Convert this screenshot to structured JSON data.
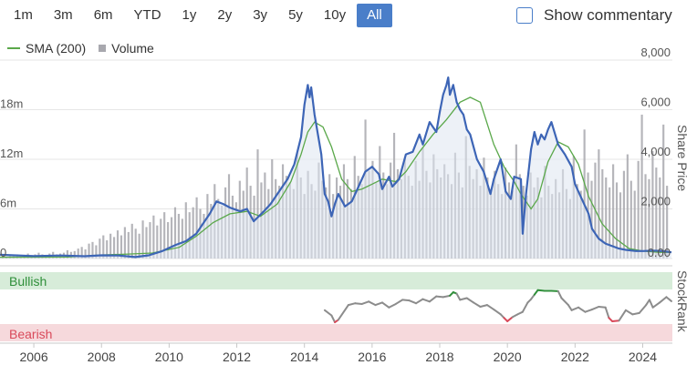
{
  "range_buttons": [
    {
      "label": "1m",
      "active": false
    },
    {
      "label": "3m",
      "active": false
    },
    {
      "label": "6m",
      "active": false
    },
    {
      "label": "YTD",
      "active": false
    },
    {
      "label": "1y",
      "active": false
    },
    {
      "label": "2y",
      "active": false
    },
    {
      "label": "3y",
      "active": false
    },
    {
      "label": "5y",
      "active": false
    },
    {
      "label": "10y",
      "active": false
    },
    {
      "label": "All",
      "active": true
    }
  ],
  "show_commentary": {
    "label": "Show commentary",
    "checked": false
  },
  "legend": {
    "sma_label": "SMA (200)",
    "volume_label": "Volume"
  },
  "colors": {
    "price": "#3d65b6",
    "sma": "#5aa84a",
    "volume": "#a8a8ae",
    "bullish": "#2f8f3a",
    "bearish": "#d9495a",
    "rank": "#8c8c8c",
    "accent": "#4a7ec9"
  },
  "chart_data": {
    "type": "line",
    "x_range": [
      2005,
      2024.85
    ],
    "x_ticks": [
      "2006",
      "2008",
      "2010",
      "2012",
      "2014",
      "2016",
      "2018",
      "2020",
      "2022",
      "2024"
    ],
    "price_axis": {
      "label": "Share Price",
      "range": [
        0,
        8000
      ],
      "ticks": [
        "8,000",
        "6,000",
        "4,000",
        "2,000",
        "0.00"
      ]
    },
    "volume_axis": {
      "ticks": [
        "18m",
        "12m",
        "6m",
        "0"
      ],
      "range": [
        0,
        24
      ]
    },
    "rank_axis": {
      "label": "StockRank",
      "bands": {
        "bullish": "Bullish",
        "bearish": "Bearish"
      },
      "range": [
        0,
        100
      ]
    },
    "series": [
      {
        "name": "SMA (200)",
        "points": [
          [
            2005,
            50
          ],
          [
            2007,
            60
          ],
          [
            2008,
            140
          ],
          [
            2008.8,
            180
          ],
          [
            2009.5,
            220
          ],
          [
            2010.3,
            450
          ],
          [
            2010.8,
            900
          ],
          [
            2011.3,
            1450
          ],
          [
            2011.8,
            1800
          ],
          [
            2012.3,
            1900
          ],
          [
            2012.7,
            1700
          ],
          [
            2013.2,
            2200
          ],
          [
            2013.6,
            3100
          ],
          [
            2013.9,
            4200
          ],
          [
            2014.1,
            5100
          ],
          [
            2014.3,
            5500
          ],
          [
            2014.55,
            5300
          ],
          [
            2014.8,
            4500
          ],
          [
            2015.1,
            3200
          ],
          [
            2015.4,
            2700
          ],
          [
            2015.7,
            2800
          ],
          [
            2016,
            3000
          ],
          [
            2016.3,
            3200
          ],
          [
            2016.7,
            3100
          ],
          [
            2017,
            3500
          ],
          [
            2017.4,
            4300
          ],
          [
            2017.8,
            5000
          ],
          [
            2018.2,
            5600
          ],
          [
            2018.6,
            6300
          ],
          [
            2018.9,
            6500
          ],
          [
            2019.2,
            6300
          ],
          [
            2019.6,
            4600
          ],
          [
            2019.9,
            3700
          ],
          [
            2020.2,
            3100
          ],
          [
            2020.4,
            2600
          ],
          [
            2020.7,
            2000
          ],
          [
            2020.9,
            2400
          ],
          [
            2021.2,
            3900
          ],
          [
            2021.5,
            4700
          ],
          [
            2021.8,
            4500
          ],
          [
            2022.1,
            3800
          ],
          [
            2022.4,
            2500
          ],
          [
            2022.8,
            1400
          ],
          [
            2023.2,
            800
          ],
          [
            2023.6,
            400
          ],
          [
            2024,
            300
          ],
          [
            2024.5,
            250
          ],
          [
            2024.85,
            250
          ]
        ]
      },
      {
        "name": "Share Price",
        "points": [
          [
            2005,
            150
          ],
          [
            2006,
            100
          ],
          [
            2006.8,
            120
          ],
          [
            2007.5,
            90
          ],
          [
            2008,
            130
          ],
          [
            2008.5,
            120
          ],
          [
            2009,
            60
          ],
          [
            2009.4,
            130
          ],
          [
            2009.8,
            300
          ],
          [
            2010.2,
            550
          ],
          [
            2010.5,
            700
          ],
          [
            2010.8,
            1000
          ],
          [
            2011.0,
            1400
          ],
          [
            2011.2,
            1800
          ],
          [
            2011.4,
            2300
          ],
          [
            2011.6,
            2200
          ],
          [
            2011.8,
            2050
          ],
          [
            2012.1,
            1900
          ],
          [
            2012.3,
            2000
          ],
          [
            2012.5,
            1500
          ],
          [
            2012.8,
            1900
          ],
          [
            2013.0,
            2200
          ],
          [
            2013.3,
            2800
          ],
          [
            2013.5,
            3200
          ],
          [
            2013.7,
            3800
          ],
          [
            2013.9,
            4900
          ],
          [
            2014.0,
            6200
          ],
          [
            2014.1,
            7000
          ],
          [
            2014.15,
            6500
          ],
          [
            2014.2,
            6900
          ],
          [
            2014.3,
            5800
          ],
          [
            2014.4,
            5000
          ],
          [
            2014.5,
            4200
          ],
          [
            2014.6,
            2600
          ],
          [
            2014.7,
            2300
          ],
          [
            2014.8,
            1700
          ],
          [
            2014.9,
            2200
          ],
          [
            2015.0,
            2600
          ],
          [
            2015.2,
            2100
          ],
          [
            2015.4,
            2300
          ],
          [
            2015.6,
            2900
          ],
          [
            2015.8,
            3500
          ],
          [
            2016.0,
            3700
          ],
          [
            2016.2,
            3400
          ],
          [
            2016.3,
            2800
          ],
          [
            2016.5,
            3300
          ],
          [
            2016.6,
            2900
          ],
          [
            2016.8,
            3200
          ],
          [
            2017.0,
            4200
          ],
          [
            2017.2,
            4300
          ],
          [
            2017.4,
            5000
          ],
          [
            2017.5,
            4600
          ],
          [
            2017.7,
            5500
          ],
          [
            2017.9,
            5100
          ],
          [
            2018.0,
            5900
          ],
          [
            2018.1,
            6600
          ],
          [
            2018.2,
            7000
          ],
          [
            2018.25,
            7300
          ],
          [
            2018.3,
            6600
          ],
          [
            2018.4,
            7000
          ],
          [
            2018.5,
            6300
          ],
          [
            2018.6,
            6000
          ],
          [
            2018.7,
            5800
          ],
          [
            2018.8,
            5200
          ],
          [
            2018.9,
            5000
          ],
          [
            2019.0,
            4500
          ],
          [
            2019.1,
            4000
          ],
          [
            2019.3,
            3500
          ],
          [
            2019.5,
            2600
          ],
          [
            2019.6,
            3200
          ],
          [
            2019.8,
            4000
          ],
          [
            2019.95,
            2700
          ],
          [
            2020.1,
            2400
          ],
          [
            2020.2,
            3300
          ],
          [
            2020.4,
            3200
          ],
          [
            2020.45,
            1000
          ],
          [
            2020.55,
            2600
          ],
          [
            2020.7,
            4400
          ],
          [
            2020.8,
            5100
          ],
          [
            2020.9,
            4600
          ],
          [
            2021.0,
            5000
          ],
          [
            2021.1,
            4800
          ],
          [
            2021.2,
            5200
          ],
          [
            2021.3,
            5500
          ],
          [
            2021.5,
            4600
          ],
          [
            2021.7,
            4200
          ],
          [
            2021.9,
            3700
          ],
          [
            2022.0,
            3000
          ],
          [
            2022.2,
            2400
          ],
          [
            2022.4,
            1800
          ],
          [
            2022.5,
            1200
          ],
          [
            2022.7,
            800
          ],
          [
            2022.9,
            600
          ],
          [
            2023.1,
            500
          ],
          [
            2023.3,
            400
          ],
          [
            2023.5,
            350
          ],
          [
            2023.8,
            300
          ],
          [
            2024.0,
            300
          ],
          [
            2024.3,
            320
          ],
          [
            2024.6,
            300
          ],
          [
            2024.85,
            250
          ]
        ]
      }
    ],
    "volume_m": [
      0.3,
      0.2,
      0.4,
      0.3,
      0.5,
      0.4,
      0.3,
      0.6,
      0.4,
      0.5,
      0.7,
      0.5,
      0.4,
      0.6,
      0.8,
      0.5,
      0.6,
      0.7,
      1.0,
      0.8,
      0.9,
      1.2,
      1.4,
      1.1,
      1.8,
      2.0,
      1.6,
      2.4,
      2.8,
      2.2,
      3.0,
      2.6,
      3.4,
      2.8,
      3.8,
      3.2,
      4.2,
      3.6,
      3.0,
      4.6,
      3.8,
      4.4,
      5.2,
      4.0,
      4.8,
      5.6,
      4.4,
      5.0,
      6.2,
      5.4,
      4.8,
      6.8,
      5.6,
      6.2,
      7.4,
      6.0,
      5.4,
      7.8,
      6.6,
      9.0,
      7.2,
      6.4,
      8.6,
      10.2,
      7.6,
      6.8,
      9.4,
      8.2,
      11.0,
      8.8,
      7.6,
      13.2,
      9.2,
      10.4,
      8.4,
      12.0,
      9.6,
      8.8,
      11.4,
      10.0,
      9.2,
      8.4,
      12.8,
      9.8,
      7.8,
      10.6,
      9.0,
      8.2,
      11.6,
      9.4,
      8.6,
      10.2,
      7.8,
      9.8,
      8.8,
      11.4,
      9.6,
      8.4,
      12.4,
      10.0,
      9.0,
      16.8,
      10.6,
      11.8,
      9.2,
      13.6,
      10.4,
      9.0,
      11.6,
      15.2,
      10.8,
      9.6,
      12.2,
      10.0,
      8.8,
      11.8,
      9.4,
      13.4,
      10.6,
      9.2,
      12.6,
      10.8,
      9.8,
      11.4,
      10.2,
      9.0,
      12.8,
      10.4,
      8.6,
      14.8,
      11.2,
      9.6,
      10.8,
      8.8,
      12.2,
      9.8,
      8.4,
      10.6,
      9.0,
      7.8,
      11.0,
      9.2,
      8.2,
      13.8,
      10.2,
      8.8,
      7.6,
      10.4,
      8.6,
      9.8,
      7.4,
      11.2,
      8.8,
      7.8,
      9.6,
      8.0,
      10.8,
      8.4,
      7.2,
      12.4,
      9.0,
      8.2,
      15.6,
      10.4,
      9.4,
      11.6,
      13.2,
      10.8,
      9.8,
      8.6,
      11.4,
      9.2,
      8.0,
      10.6,
      12.6,
      9.4,
      8.2,
      11.8,
      17.4,
      10.2,
      9.6,
      13.0,
      11.0,
      9.8,
      16.2,
      8.8
    ],
    "stockrank": [
      [
        2014.6,
        40
      ],
      [
        2014.8,
        25
      ],
      [
        2014.9,
        5
      ],
      [
        2015.0,
        12
      ],
      [
        2015.3,
        55
      ],
      [
        2015.5,
        60
      ],
      [
        2015.7,
        58
      ],
      [
        2015.9,
        65
      ],
      [
        2016.1,
        55
      ],
      [
        2016.3,
        62
      ],
      [
        2016.5,
        48
      ],
      [
        2016.7,
        58
      ],
      [
        2016.9,
        70
      ],
      [
        2017.1,
        68
      ],
      [
        2017.3,
        60
      ],
      [
        2017.5,
        72
      ],
      [
        2017.7,
        65
      ],
      [
        2017.9,
        80
      ],
      [
        2018.1,
        78
      ],
      [
        2018.3,
        82
      ],
      [
        2018.4,
        92
      ],
      [
        2018.5,
        88
      ],
      [
        2018.6,
        70
      ],
      [
        2018.8,
        75
      ],
      [
        2019.0,
        62
      ],
      [
        2019.2,
        50
      ],
      [
        2019.4,
        55
      ],
      [
        2019.6,
        42
      ],
      [
        2019.8,
        28
      ],
      [
        2019.9,
        18
      ],
      [
        2020.0,
        8
      ],
      [
        2020.15,
        20
      ],
      [
        2020.3,
        28
      ],
      [
        2020.45,
        35
      ],
      [
        2020.6,
        62
      ],
      [
        2020.7,
        72
      ],
      [
        2020.8,
        85
      ],
      [
        2020.9,
        98
      ],
      [
        2021.1,
        96
      ],
      [
        2021.3,
        96
      ],
      [
        2021.5,
        95
      ],
      [
        2021.6,
        75
      ],
      [
        2021.8,
        55
      ],
      [
        2021.9,
        40
      ],
      [
        2022.1,
        48
      ],
      [
        2022.3,
        35
      ],
      [
        2022.5,
        42
      ],
      [
        2022.7,
        50
      ],
      [
        2022.9,
        48
      ],
      [
        2023.0,
        18
      ],
      [
        2023.1,
        8
      ],
      [
        2023.3,
        10
      ],
      [
        2023.5,
        40
      ],
      [
        2023.7,
        28
      ],
      [
        2023.9,
        32
      ],
      [
        2024.1,
        55
      ],
      [
        2024.2,
        70
      ],
      [
        2024.3,
        48
      ],
      [
        2024.5,
        62
      ],
      [
        2024.7,
        78
      ],
      [
        2024.85,
        66
      ]
    ],
    "rank_thresholds": {
      "bullish": 80,
      "bearish": 20
    }
  }
}
